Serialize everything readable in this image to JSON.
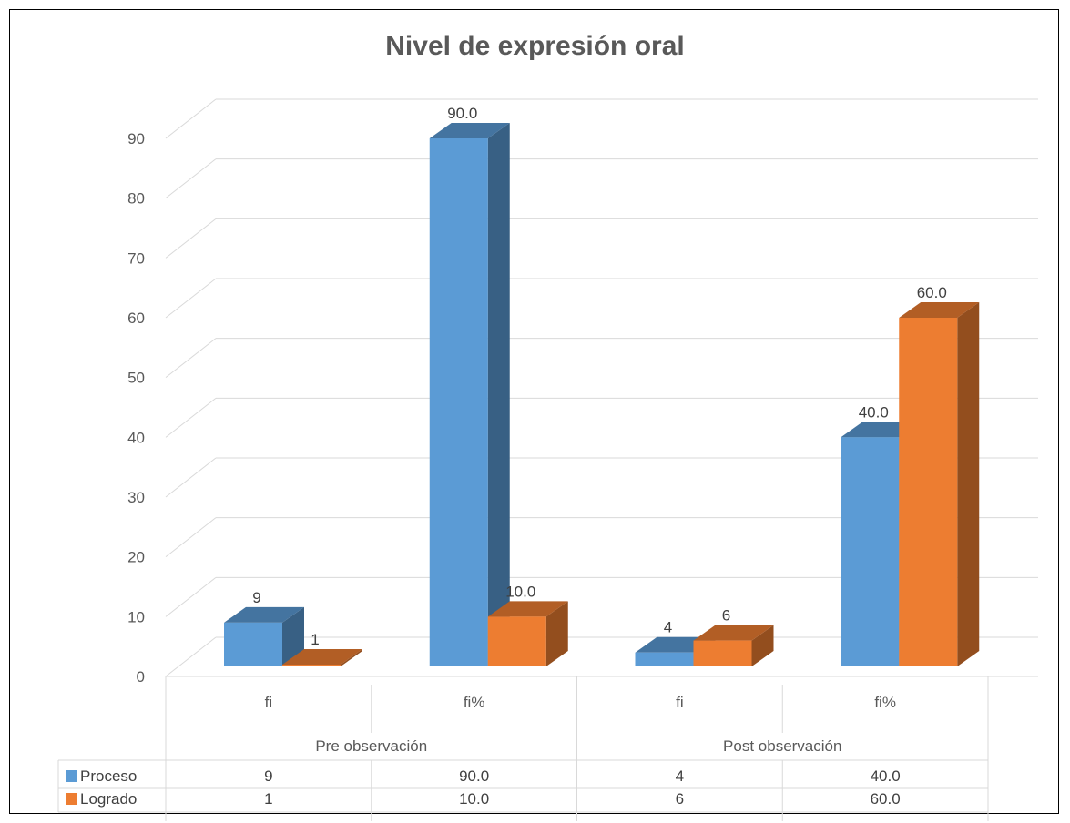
{
  "chart_data": {
    "type": "bar",
    "title": "Nivel de expresión oral",
    "groups": [
      {
        "label": "Pre observación",
        "categories": [
          "fi",
          "fi%"
        ]
      },
      {
        "label": "Post observación",
        "categories": [
          "fi",
          "fi%"
        ]
      }
    ],
    "categories": [
      "fi",
      "fi%",
      "fi",
      "fi%"
    ],
    "series": [
      {
        "name": "Proceso",
        "color": "#5B9BD5",
        "values": [
          9,
          90,
          4,
          40
        ],
        "labels": [
          "9",
          "90.0",
          "4",
          "40.0"
        ]
      },
      {
        "name": "Logrado",
        "color": "#ED7D31",
        "values": [
          1,
          10,
          6,
          60
        ],
        "labels": [
          "1",
          "10.0",
          "6",
          "60.0"
        ]
      }
    ],
    "ylim": [
      0,
      90
    ],
    "yticks": [
      0,
      10,
      20,
      30,
      40,
      50,
      60,
      70,
      80,
      90
    ],
    "grid": true,
    "legend": "data-table"
  }
}
